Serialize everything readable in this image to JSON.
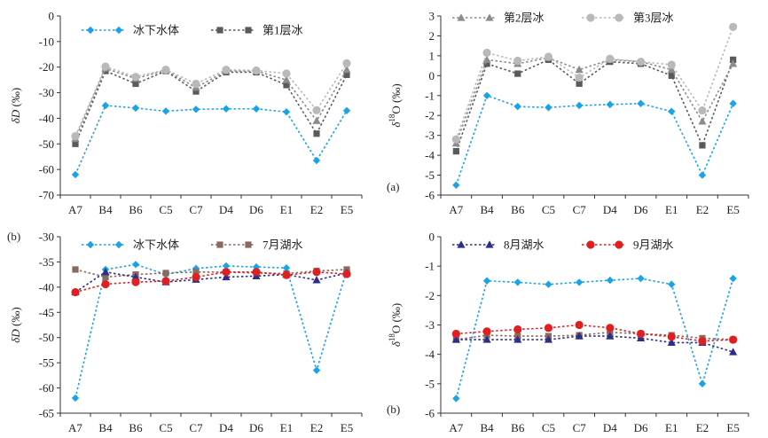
{
  "chart_data": [
    {
      "id": "upper-left",
      "type": "line",
      "tag": "",
      "ylabel_main": "δD",
      "ylabel_sup": "",
      "ylabel_unit": "(‰)",
      "ylim": [
        -70,
        0
      ],
      "yticks": [
        0,
        -10,
        -20,
        -30,
        -40,
        -50,
        -60,
        -70
      ],
      "categories": [
        "A7",
        "B4",
        "B6",
        "C5",
        "C7",
        "D4",
        "D6",
        "E1",
        "E2",
        "E5"
      ],
      "series": [
        {
          "name": "冰下水体",
          "color": "#1aa3e8",
          "marker": "diamond",
          "values": [
            -62,
            -35,
            -36,
            -37.2,
            -36.5,
            -36.3,
            -36.3,
            -37.5,
            -56.5,
            -37
          ]
        },
        {
          "name": "第1层冰",
          "color": "#5a5a5a",
          "marker": "square",
          "values": [
            -50,
            -21.5,
            -26.5,
            -21.5,
            -29.5,
            -22,
            -22,
            -27,
            -46,
            -23
          ]
        },
        {
          "name": "第2层冰",
          "color": "#8c8c8c",
          "marker": "triangle",
          "values": [
            -48,
            -20.5,
            -24.5,
            -21.2,
            -28,
            -21.5,
            -21.5,
            -25,
            -41,
            -21
          ],
          "legend": false
        },
        {
          "name": "第3层冰",
          "color": "#b9b9b9",
          "marker": "circle",
          "values": [
            -47,
            -19.8,
            -23.8,
            -21,
            -26.5,
            -21,
            -21.3,
            -22.5,
            -36.8,
            -18.5
          ],
          "legend": false
        }
      ]
    },
    {
      "id": "upper-right",
      "type": "line",
      "tag": "(a)",
      "ylabel_main": "δ",
      "ylabel_sup": "18",
      "ylabel_unit": "O (‰)",
      "ylim": [
        -6,
        3
      ],
      "yticks": [
        3,
        2,
        1,
        0,
        -1,
        -2,
        -3,
        -4,
        -5,
        -6
      ],
      "categories": [
        "A7",
        "B4",
        "B6",
        "C5",
        "C7",
        "D4",
        "D6",
        "E1",
        "E2",
        "E5"
      ],
      "series": [
        {
          "name": "冰下水体",
          "color": "#1aa3e8",
          "marker": "diamond",
          "values": [
            -5.5,
            -1,
            -1.55,
            -1.6,
            -1.5,
            -1.45,
            -1.4,
            -1.8,
            -5,
            -1.4
          ],
          "legend": false
        },
        {
          "name": "第1层冰",
          "color": "#5a5a5a",
          "marker": "square",
          "values": [
            -3.8,
            0.6,
            0.1,
            0.8,
            -0.4,
            0.7,
            0.6,
            0,
            -3.5,
            0.8
          ],
          "legend": false
        },
        {
          "name": "第2层冰",
          "color": "#8c8c8c",
          "marker": "triangle",
          "values": [
            -3.4,
            0.8,
            0.6,
            0.9,
            0.3,
            0.8,
            0.7,
            0.3,
            -2.3,
            0.6
          ]
        },
        {
          "name": "第3层冰",
          "color": "#b9b9b9",
          "marker": "circle",
          "values": [
            -3.2,
            1.15,
            0.75,
            0.95,
            -0.1,
            0.85,
            0.7,
            0.55,
            -1.75,
            2.45
          ]
        }
      ]
    },
    {
      "id": "lower-left",
      "type": "line",
      "tag": "(b)",
      "ylabel_main": "δD",
      "ylabel_sup": "",
      "ylabel_unit": "(‰)",
      "ylim": [
        -65,
        -30
      ],
      "yticks": [
        -30,
        -35,
        -40,
        -45,
        -50,
        -55,
        -60,
        -65
      ],
      "categories": [
        "A7",
        "B4",
        "B6",
        "C5",
        "C7",
        "D4",
        "D6",
        "E1",
        "E2",
        "E5"
      ],
      "series": [
        {
          "name": "冰下水体",
          "color": "#1aa3e8",
          "marker": "diamond",
          "values": [
            -62,
            -36.5,
            -35.5,
            -37.5,
            -36.3,
            -35.8,
            -36,
            -36.2,
            -56.5,
            -36.6
          ]
        },
        {
          "name": "7月湖水",
          "color": "#8a6a60",
          "marker": "square",
          "values": [
            -36.5,
            -38,
            -37.5,
            -37.2,
            -37,
            -37,
            -37.2,
            -37.3,
            -36.8,
            -36.5
          ]
        },
        {
          "name": "8月湖水",
          "color": "#2d2d8c",
          "marker": "triangle",
          "values": [
            -41,
            -37,
            -38,
            -39,
            -38.5,
            -38,
            -37.8,
            -37.5,
            -38.6,
            -37.2
          ],
          "legend": false
        },
        {
          "name": "9月湖水",
          "color": "#e02020",
          "marker": "circle",
          "values": [
            -41,
            -39.4,
            -39,
            -38.8,
            -38,
            -37,
            -37,
            -37.6,
            -37,
            -37.4
          ],
          "legend": false
        }
      ]
    },
    {
      "id": "lower-right",
      "type": "line",
      "tag": "(b)",
      "ylabel_main": "δ",
      "ylabel_sup": "18",
      "ylabel_unit": "O (‰)",
      "ylim": [
        -6,
        0
      ],
      "yticks": [
        0,
        -1,
        -2,
        -3,
        -4,
        -5,
        -6
      ],
      "categories": [
        "A7",
        "B4",
        "B6",
        "C5",
        "C7",
        "D4",
        "D6",
        "E1",
        "E2",
        "E5"
      ],
      "series": [
        {
          "name": "冰下水体",
          "color": "#1aa3e8",
          "marker": "diamond",
          "values": [
            -5.5,
            -1.5,
            -1.55,
            -1.62,
            -1.55,
            -1.48,
            -1.42,
            -1.62,
            -5,
            -1.42
          ],
          "legend": false
        },
        {
          "name": "7月湖水",
          "color": "#8a6a60",
          "marker": "square",
          "values": [
            -3.5,
            -3.35,
            -3.38,
            -3.38,
            -3.35,
            -3.25,
            -3.3,
            -3.35,
            -3.45,
            -3.5
          ],
          "legend": false
        },
        {
          "name": "8月湖水",
          "color": "#2d2d8c",
          "marker": "triangle",
          "values": [
            -3.5,
            -3.5,
            -3.5,
            -3.5,
            -3.38,
            -3.38,
            -3.45,
            -3.6,
            -3.6,
            -3.92
          ]
        },
        {
          "name": "9月湖水",
          "color": "#e02020",
          "marker": "circle",
          "values": [
            -3.3,
            -3.22,
            -3.15,
            -3.1,
            -3,
            -3.1,
            -3.3,
            -3.4,
            -3.55,
            -3.5
          ]
        }
      ]
    }
  ]
}
